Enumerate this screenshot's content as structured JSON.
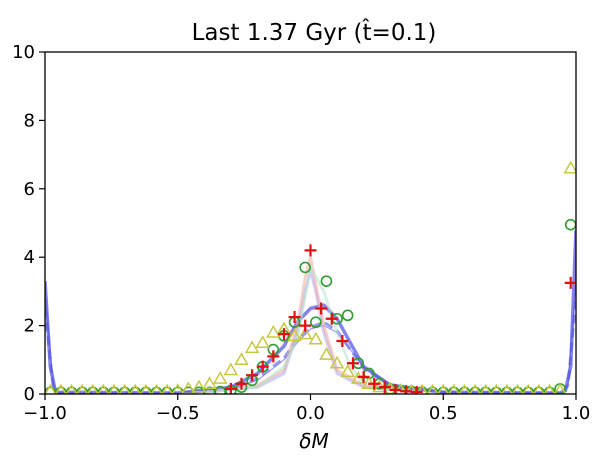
{
  "chart_data": {
    "type": "line",
    "title": "Last 1.37 Gyr (t̂=0.1)",
    "xlabel": "δM",
    "ylabel": "",
    "xlim": [
      -1.0,
      1.0
    ],
    "ylim": [
      0,
      10
    ],
    "x_ticks": [
      "-1.0",
      "-0.5",
      "0.0",
      "0.5",
      "1.0"
    ],
    "x_tick_values": [
      -1.0,
      -0.5,
      0.0,
      0.5,
      1.0
    ],
    "y_ticks": [
      "0",
      "2",
      "4",
      "6",
      "8",
      "10"
    ],
    "y_tick_values": [
      0,
      2,
      4,
      6,
      8,
      10
    ],
    "grid": false,
    "legend": "none",
    "series": [
      {
        "style": "line-thin",
        "color": "#8a8af0",
        "x": [
          -1.0,
          -0.97,
          -0.95,
          -0.5,
          -0.3,
          -0.2,
          -0.1,
          -0.05,
          0.0,
          0.05,
          0.1,
          0.15,
          0.2,
          0.3,
          0.5,
          0.9,
          0.95,
          0.97,
          1.0
        ],
        "y": [
          3.1,
          0.3,
          0.02,
          0.02,
          0.15,
          0.4,
          1.0,
          1.5,
          1.9,
          2.0,
          1.8,
          1.3,
          0.8,
          0.3,
          0.05,
          0.02,
          0.05,
          0.3,
          3.3
        ]
      },
      {
        "style": "line-dashed",
        "color": "#7070e8",
        "x": [
          -1.0,
          -0.97,
          -0.95,
          -0.5,
          -0.3,
          -0.2,
          -0.1,
          -0.05,
          0.0,
          0.05,
          0.1,
          0.15,
          0.2,
          0.3,
          0.5,
          0.9,
          0.95,
          0.97,
          1.0
        ],
        "y": [
          2.5,
          0.25,
          0.02,
          0.02,
          0.15,
          0.45,
          1.05,
          1.6,
          1.95,
          2.1,
          1.85,
          1.3,
          0.75,
          0.25,
          0.05,
          0.02,
          0.05,
          0.25,
          2.8
        ]
      },
      {
        "style": "line-thick",
        "color": "#5050e0",
        "x": [
          -1.0,
          -0.98,
          -0.96,
          -0.5,
          -0.3,
          -0.2,
          -0.1,
          -0.05,
          0.0,
          0.05,
          0.1,
          0.15,
          0.2,
          0.3,
          0.5,
          0.94,
          0.96,
          0.98,
          1.0
        ],
        "y": [
          3.3,
          0.8,
          0.05,
          0.03,
          0.2,
          0.6,
          1.4,
          2.1,
          2.5,
          2.6,
          2.2,
          1.5,
          0.8,
          0.25,
          0.05,
          0.03,
          0.1,
          0.8,
          4.8
        ]
      },
      {
        "style": "line-faint",
        "color": "#a8a8f5",
        "x": [
          -0.4,
          -0.2,
          -0.1,
          -0.05,
          -0.02,
          0.0,
          0.02,
          0.05,
          0.1,
          0.2,
          0.4
        ],
        "y": [
          0.05,
          0.2,
          0.6,
          1.8,
          3.0,
          3.6,
          3.0,
          1.8,
          0.6,
          0.2,
          0.05
        ]
      },
      {
        "style": "line-faint",
        "color": "#f0a8a0",
        "x": [
          -0.4,
          -0.2,
          -0.1,
          -0.05,
          -0.02,
          0.0,
          0.02,
          0.05,
          0.1,
          0.2,
          0.4
        ],
        "y": [
          0.05,
          0.25,
          0.7,
          2.0,
          3.4,
          4.0,
          3.2,
          2.0,
          0.7,
          0.25,
          0.05
        ]
      },
      {
        "style": "line-faint",
        "color": "#b8e4c8",
        "x": [
          -0.4,
          -0.2,
          -0.1,
          -0.05,
          0.0,
          0.05,
          0.1,
          0.15,
          0.2,
          0.4
        ],
        "y": [
          0.05,
          0.2,
          0.8,
          1.6,
          3.7,
          3.0,
          1.8,
          0.8,
          0.3,
          0.05
        ]
      },
      {
        "style": "marker-circle",
        "color": "#2e9e2e",
        "x": [
          -0.98,
          -0.94,
          -0.9,
          -0.86,
          -0.82,
          -0.78,
          -0.74,
          -0.7,
          -0.66,
          -0.62,
          -0.58,
          -0.54,
          -0.5,
          -0.46,
          -0.42,
          -0.38,
          -0.34,
          -0.3,
          -0.26,
          -0.22,
          -0.18,
          -0.14,
          -0.1,
          -0.06,
          -0.02,
          0.02,
          0.06,
          0.1,
          0.14,
          0.18,
          0.22,
          0.26,
          0.3,
          0.34,
          0.38,
          0.42,
          0.46,
          0.5,
          0.54,
          0.58,
          0.62,
          0.66,
          0.7,
          0.74,
          0.78,
          0.82,
          0.86,
          0.9,
          0.94,
          0.98
        ],
        "y": [
          0.05,
          0.05,
          0.05,
          0.05,
          0.05,
          0.05,
          0.05,
          0.05,
          0.05,
          0.05,
          0.05,
          0.05,
          0.05,
          0.05,
          0.05,
          0.05,
          0.07,
          0.1,
          0.2,
          0.4,
          0.8,
          1.3,
          1.7,
          2.1,
          3.7,
          2.1,
          3.3,
          2.2,
          2.3,
          0.9,
          0.6,
          0.3,
          0.15,
          0.1,
          0.08,
          0.06,
          0.05,
          0.05,
          0.05,
          0.05,
          0.05,
          0.05,
          0.05,
          0.05,
          0.05,
          0.05,
          0.05,
          0.05,
          0.15,
          4.95
        ]
      },
      {
        "style": "marker-triangle",
        "color": "#c8c840",
        "x": [
          -0.98,
          -0.94,
          -0.9,
          -0.86,
          -0.82,
          -0.78,
          -0.74,
          -0.7,
          -0.66,
          -0.62,
          -0.58,
          -0.54,
          -0.5,
          -0.46,
          -0.42,
          -0.38,
          -0.34,
          -0.3,
          -0.26,
          -0.22,
          -0.18,
          -0.14,
          -0.1,
          -0.06,
          -0.02,
          0.02,
          0.06,
          0.1,
          0.14,
          0.18,
          0.22,
          0.26,
          0.3,
          0.34,
          0.38,
          0.42,
          0.46,
          0.5,
          0.54,
          0.58,
          0.62,
          0.66,
          0.7,
          0.74,
          0.78,
          0.82,
          0.86,
          0.9,
          0.94,
          0.98
        ],
        "y": [
          0.08,
          0.08,
          0.08,
          0.08,
          0.08,
          0.08,
          0.08,
          0.08,
          0.08,
          0.08,
          0.08,
          0.08,
          0.1,
          0.15,
          0.2,
          0.3,
          0.45,
          0.7,
          1.0,
          1.35,
          1.5,
          1.8,
          1.9,
          1.7,
          1.75,
          1.6,
          1.15,
          0.9,
          0.65,
          0.45,
          0.3,
          0.2,
          0.15,
          0.1,
          0.08,
          0.08,
          0.08,
          0.08,
          0.08,
          0.08,
          0.08,
          0.08,
          0.08,
          0.08,
          0.08,
          0.08,
          0.08,
          0.08,
          0.1,
          6.6
        ]
      },
      {
        "style": "marker-plus",
        "color": "#e01010",
        "x": [
          -0.3,
          -0.26,
          -0.22,
          -0.18,
          -0.14,
          -0.1,
          -0.06,
          -0.02,
          0.0,
          0.04,
          0.08,
          0.12,
          0.16,
          0.2,
          0.24,
          0.28,
          0.32,
          0.36,
          0.4,
          0.98
        ],
        "y": [
          0.15,
          0.3,
          0.55,
          0.8,
          1.1,
          1.75,
          2.25,
          2.0,
          4.2,
          2.5,
          2.2,
          1.55,
          0.9,
          0.5,
          0.3,
          0.2,
          0.12,
          0.08,
          0.06,
          3.25
        ]
      }
    ]
  }
}
